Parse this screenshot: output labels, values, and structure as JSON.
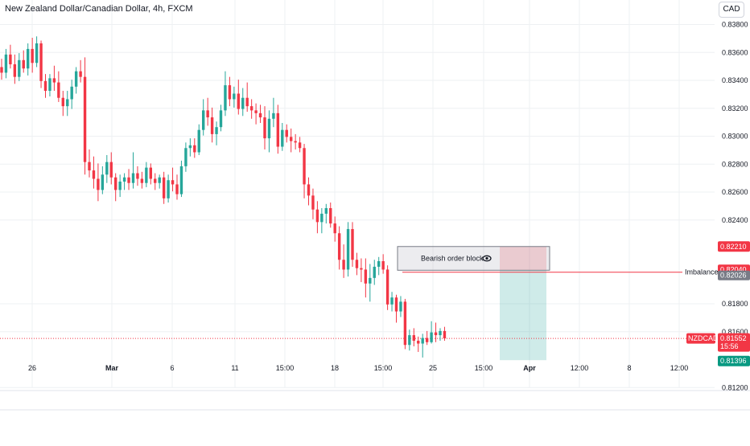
{
  "header": {
    "symbol_title": "New Zealand Dollar/Canadian Dollar, 4h, FXCM",
    "currency_button": "CAD"
  },
  "colors": {
    "up": "#26a69a",
    "down": "#f23645",
    "grid": "#eef0f3",
    "axis_text": "#131722"
  },
  "chart_data": {
    "type": "candlestick",
    "title": "New Zealand Dollar/Canadian Dollar, 4h, FXCM",
    "y_ticks": [
      "0.83800",
      "0.83600",
      "0.83400",
      "0.83200",
      "0.83000",
      "0.82800",
      "0.82600",
      "0.82400",
      "0.81800",
      "0.81600",
      "0.81200"
    ],
    "ylim": [
      0.8112,
      0.8392
    ],
    "x_ticks": [
      "26",
      "Mar",
      "6",
      "11",
      "15:00",
      "18",
      "15:00",
      "25",
      "15:00",
      "Apr",
      "12:00",
      "8",
      "12:00"
    ],
    "grid": true,
    "candles": [
      [
        0.83495,
        0.83555,
        0.83405,
        0.83455
      ],
      [
        0.83455,
        0.83625,
        0.83415,
        0.83585
      ],
      [
        0.83585,
        0.83655,
        0.83485,
        0.83515
      ],
      [
        0.83515,
        0.83585,
        0.83375,
        0.83425
      ],
      [
        0.83425,
        0.83595,
        0.83395,
        0.83545
      ],
      [
        0.83545,
        0.83615,
        0.83455,
        0.83485
      ],
      [
        0.83485,
        0.83665,
        0.83435,
        0.83625
      ],
      [
        0.83625,
        0.83705,
        0.83455,
        0.83525
      ],
      [
        0.83525,
        0.83715,
        0.83495,
        0.83665
      ],
      [
        0.83665,
        0.83685,
        0.83345,
        0.83395
      ],
      [
        0.83395,
        0.83445,
        0.83275,
        0.83325
      ],
      [
        0.83325,
        0.83445,
        0.83285,
        0.83415
      ],
      [
        0.83415,
        0.83505,
        0.83325,
        0.83385
      ],
      [
        0.83385,
        0.83465,
        0.83245,
        0.83275
      ],
      [
        0.83275,
        0.83325,
        0.83145,
        0.83215
      ],
      [
        0.83215,
        0.83325,
        0.83145,
        0.83265
      ],
      [
        0.83265,
        0.83405,
        0.83195,
        0.83355
      ],
      [
        0.83355,
        0.83495,
        0.83305,
        0.83465
      ],
      [
        0.83465,
        0.83545,
        0.83385,
        0.83425
      ],
      [
        0.83425,
        0.83565,
        0.82725,
        0.82815
      ],
      [
        0.82815,
        0.82905,
        0.82705,
        0.82755
      ],
      [
        0.82755,
        0.82855,
        0.82625,
        0.82695
      ],
      [
        0.82695,
        0.82805,
        0.82535,
        0.82615
      ],
      [
        0.82615,
        0.82785,
        0.82585,
        0.82725
      ],
      [
        0.82725,
        0.82865,
        0.82665,
        0.82815
      ],
      [
        0.82815,
        0.82885,
        0.82655,
        0.82705
      ],
      [
        0.82705,
        0.82735,
        0.82535,
        0.82615
      ],
      [
        0.82615,
        0.82725,
        0.82565,
        0.82675
      ],
      [
        0.82675,
        0.82735,
        0.82615,
        0.82705
      ],
      [
        0.82705,
        0.82765,
        0.82615,
        0.82665
      ],
      [
        0.82665,
        0.82885,
        0.82625,
        0.82735
      ],
      [
        0.82735,
        0.82785,
        0.82645,
        0.82695
      ],
      [
        0.82695,
        0.82745,
        0.82625,
        0.82665
      ],
      [
        0.82665,
        0.82815,
        0.82635,
        0.82775
      ],
      [
        0.82775,
        0.82805,
        0.82655,
        0.82695
      ],
      [
        0.82695,
        0.82735,
        0.82615,
        0.82665
      ],
      [
        0.82665,
        0.82725,
        0.82625,
        0.82705
      ],
      [
        0.82705,
        0.82745,
        0.82515,
        0.82555
      ],
      [
        0.82555,
        0.82725,
        0.82525,
        0.82685
      ],
      [
        0.82685,
        0.82775,
        0.82605,
        0.82655
      ],
      [
        0.82655,
        0.82725,
        0.82545,
        0.82585
      ],
      [
        0.82585,
        0.82825,
        0.82565,
        0.82785
      ],
      [
        0.82785,
        0.82955,
        0.82745,
        0.82915
      ],
      [
        0.82915,
        0.82985,
        0.82855,
        0.82935
      ],
      [
        0.82935,
        0.82985,
        0.82845,
        0.82885
      ],
      [
        0.82885,
        0.83085,
        0.82865,
        0.83045
      ],
      [
        0.83045,
        0.83265,
        0.83005,
        0.83185
      ],
      [
        0.83185,
        0.83275,
        0.83075,
        0.83135
      ],
      [
        0.83135,
        0.83205,
        0.82955,
        0.83015
      ],
      [
        0.83015,
        0.83105,
        0.82935,
        0.83065
      ],
      [
        0.83065,
        0.83225,
        0.83035,
        0.83185
      ],
      [
        0.83185,
        0.83465,
        0.83145,
        0.83365
      ],
      [
        0.83365,
        0.83425,
        0.83215,
        0.83265
      ],
      [
        0.83265,
        0.83355,
        0.83205,
        0.83305
      ],
      [
        0.83305,
        0.83405,
        0.83155,
        0.83195
      ],
      [
        0.83195,
        0.83345,
        0.83145,
        0.83275
      ],
      [
        0.83275,
        0.83385,
        0.83175,
        0.83215
      ],
      [
        0.83215,
        0.83265,
        0.83125,
        0.83185
      ],
      [
        0.83185,
        0.83235,
        0.83085,
        0.83165
      ],
      [
        0.83165,
        0.83225,
        0.83095,
        0.83135
      ],
      [
        0.83135,
        0.83215,
        0.82905,
        0.82985
      ],
      [
        0.82985,
        0.83185,
        0.82885,
        0.83125
      ],
      [
        0.83125,
        0.83275,
        0.83065,
        0.83165
      ],
      [
        0.83165,
        0.83225,
        0.82875,
        0.82925
      ],
      [
        0.82925,
        0.83095,
        0.82895,
        0.83045
      ],
      [
        0.83045,
        0.83085,
        0.82955,
        0.82995
      ],
      [
        0.82995,
        0.83055,
        0.82885,
        0.82965
      ],
      [
        0.82965,
        0.83015,
        0.82905,
        0.82955
      ],
      [
        0.82955,
        0.82995,
        0.82885,
        0.82915
      ],
      [
        0.82915,
        0.82945,
        0.82555,
        0.82655
      ],
      [
        0.82655,
        0.82705,
        0.82505,
        0.82575
      ],
      [
        0.82575,
        0.82625,
        0.82405,
        0.82475
      ],
      [
        0.82475,
        0.82535,
        0.82305,
        0.82385
      ],
      [
        0.82385,
        0.82485,
        0.82305,
        0.82445
      ],
      [
        0.82445,
        0.82515,
        0.82375,
        0.82485
      ],
      [
        0.82485,
        0.82525,
        0.82345,
        0.82375
      ],
      [
        0.82375,
        0.82425,
        0.82245,
        0.82305
      ],
      [
        0.82305,
        0.82355,
        0.82045,
        0.82115
      ],
      [
        0.82115,
        0.82225,
        0.81985,
        0.82045
      ],
      [
        0.82045,
        0.82385,
        0.81995,
        0.82335
      ],
      [
        0.82335,
        0.82385,
        0.82065,
        0.82115
      ],
      [
        0.82115,
        0.82165,
        0.82005,
        0.82055
      ],
      [
        0.82055,
        0.82125,
        0.81955,
        0.82045
      ],
      [
        0.82045,
        0.82125,
        0.81845,
        0.81945
      ],
      [
        0.81945,
        0.82085,
        0.81815,
        0.81985
      ],
      [
        0.81985,
        0.82115,
        0.81935,
        0.82065
      ],
      [
        0.82065,
        0.82135,
        0.82005,
        0.82105
      ],
      [
        0.82105,
        0.82155,
        0.82015,
        0.82045
      ],
      [
        0.82045,
        0.82075,
        0.81755,
        0.81795
      ],
      [
        0.81795,
        0.81885,
        0.81745,
        0.81845
      ],
      [
        0.81845,
        0.81865,
        0.81665,
        0.81745
      ],
      [
        0.81745,
        0.81855,
        0.81705,
        0.81815
      ],
      [
        0.81815,
        0.81835,
        0.81475,
        0.81505
      ],
      [
        0.81505,
        0.81615,
        0.81465,
        0.81575
      ],
      [
        0.81575,
        0.81625,
        0.81495,
        0.81535
      ],
      [
        0.81535,
        0.81565,
        0.81455,
        0.81515
      ],
      [
        0.81515,
        0.81585,
        0.81415,
        0.81555
      ],
      [
        0.81555,
        0.81605,
        0.81505,
        0.81525
      ],
      [
        0.81525,
        0.81675,
        0.81515,
        0.81595
      ],
      [
        0.81595,
        0.81665,
        0.81525,
        0.81575
      ],
      [
        0.81575,
        0.81625,
        0.81535,
        0.81605
      ],
      [
        0.81605,
        0.81635,
        0.81535,
        0.81552
      ]
    ],
    "order_block": {
      "label": "Bearish order block",
      "top": 0.8221,
      "bottom": 0.8204
    },
    "imbalance": {
      "label": "Imbalance",
      "level": 0.82026
    },
    "position": {
      "stop": 0.8221,
      "entry": 0.8204,
      "target": 0.81396
    },
    "current": {
      "symbol": "NZDCAD",
      "price": 0.81552,
      "countdown": "15:56"
    },
    "price_labels": [
      "0.82210",
      "0.82040",
      "0.82026",
      "0.81552",
      "0.81396"
    ]
  }
}
